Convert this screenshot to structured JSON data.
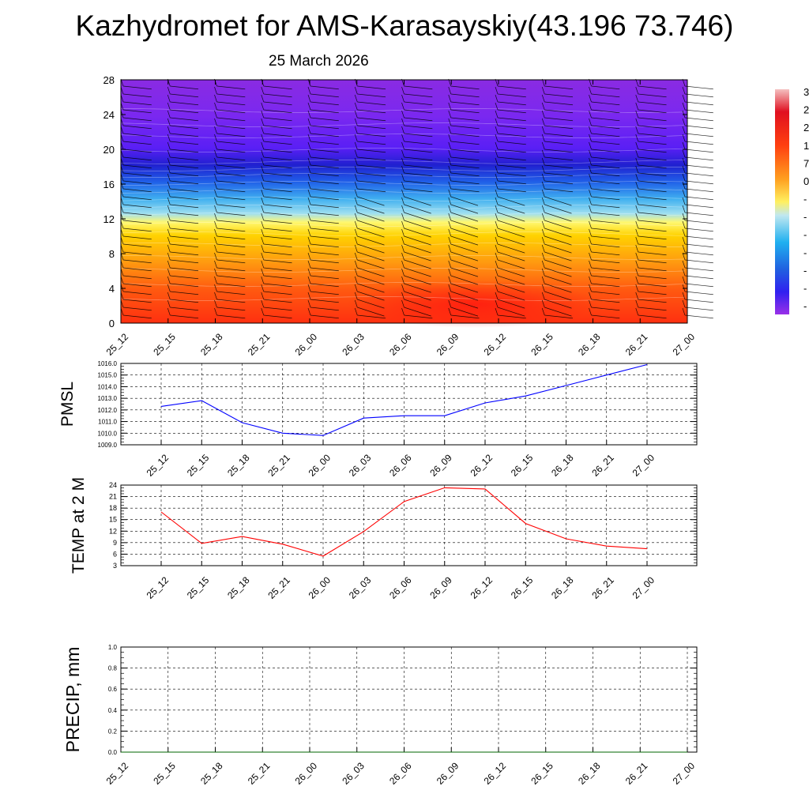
{
  "title": "Kazhydromet for AMS-Karasayskiy(43.196 73.746)",
  "subtitle": "25 March 2026",
  "colorbar": {
    "labels": [
      "3",
      "2",
      "2",
      "1",
      "7",
      "0",
      "-",
      "-",
      "-",
      "-",
      "-",
      "-",
      "-"
    ]
  },
  "chart_data": [
    {
      "type": "heatmap",
      "name": "vertical cross-section temperature with wind barbs",
      "x": [
        "25_12",
        "25_15",
        "25_18",
        "25_21",
        "26_00",
        "26_03",
        "26_06",
        "26_09",
        "26_12",
        "26_15",
        "26_18",
        "26_21",
        "27_00"
      ],
      "y_ticks": [
        0,
        4,
        8,
        12,
        16,
        20,
        24,
        28
      ],
      "ylim": [
        0,
        28
      ],
      "palette": "violet-blue-cyan-yellow-orange-red",
      "grid": false
    },
    {
      "type": "line",
      "ylabel": "PMSL",
      "x": [
        "25_12",
        "25_15",
        "25_18",
        "25_21",
        "26_00",
        "26_03",
        "26_06",
        "26_09",
        "26_12",
        "26_15",
        "26_18",
        "26_21",
        "27_00"
      ],
      "y_ticks": [
        "1009.0",
        "1010.0",
        "1011.0",
        "1012.0",
        "1013.0",
        "1014.0",
        "1015.0",
        "1016.0"
      ],
      "ylim": [
        1009,
        1016
      ],
      "series": [
        {
          "color": "#0000ff",
          "values": [
            1012.3,
            1012.8,
            1010.9,
            1010.0,
            1009.8,
            1011.3,
            1011.5,
            1011.5,
            1012.6,
            1013.2,
            1014.1,
            1015.0,
            1015.9
          ]
        }
      ],
      "grid": true
    },
    {
      "type": "line",
      "ylabel": "TEMP at 2 M",
      "x": [
        "25_12",
        "25_15",
        "25_18",
        "25_21",
        "26_00",
        "26_03",
        "26_06",
        "26_09",
        "26_12",
        "26_15",
        "26_18",
        "26_21",
        "27_00"
      ],
      "y_ticks": [
        "3",
        "6",
        "9",
        "12",
        "15",
        "18",
        "21",
        "24"
      ],
      "ylim": [
        3,
        24
      ],
      "series": [
        {
          "color": "#ff0000",
          "values": [
            17.0,
            8.8,
            10.6,
            8.6,
            5.5,
            11.9,
            19.7,
            23.3,
            23.0,
            14.0,
            10.0,
            8.1,
            7.4
          ]
        }
      ],
      "grid": true
    },
    {
      "type": "line",
      "ylabel": "PRECIP, mm",
      "x": [
        "25_12",
        "25_15",
        "25_18",
        "25_21",
        "26_00",
        "26_03",
        "26_06",
        "26_09",
        "26_12",
        "26_15",
        "26_18",
        "26_21",
        "27_00"
      ],
      "y_ticks": [
        "0.0",
        "0.2",
        "0.4",
        "0.6",
        "0.8",
        "1.0"
      ],
      "ylim": [
        0,
        1
      ],
      "series": [
        {
          "color": "#006400",
          "values": [
            0,
            0,
            0,
            0,
            0,
            0,
            0,
            0,
            0,
            0,
            0,
            0,
            0
          ]
        }
      ],
      "grid": true
    }
  ]
}
